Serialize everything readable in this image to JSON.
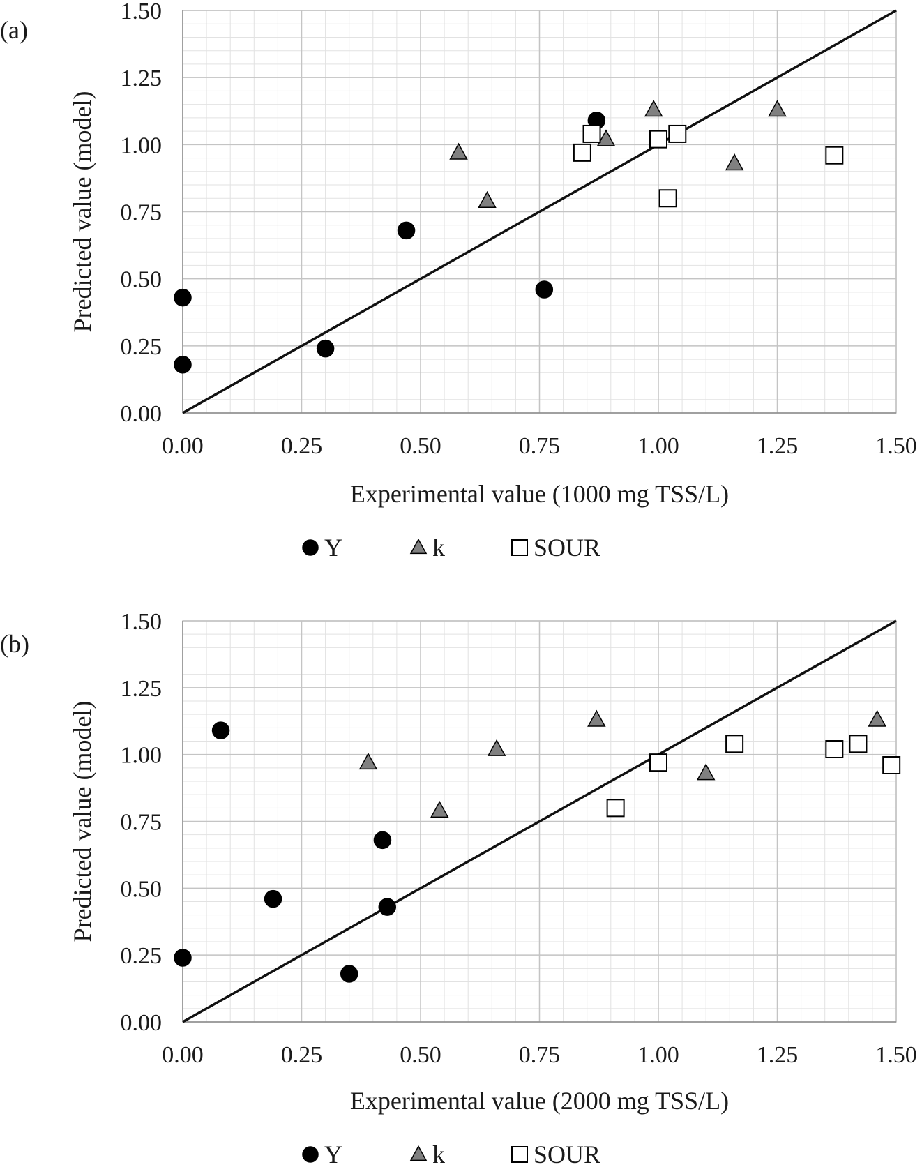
{
  "chart_data": [
    {
      "type": "scatter",
      "panel_label": "(a)",
      "xlabel": "Experimental value (1000 mg TSS/L)",
      "ylabel": "Predicted value (model)",
      "xlim": [
        0,
        1.5
      ],
      "ylim": [
        0,
        1.5
      ],
      "x_ticks": [
        "0.00",
        "0.25",
        "0.50",
        "0.75",
        "1.00",
        "1.25",
        "1.50"
      ],
      "y_ticks": [
        "0.00",
        "0.25",
        "0.50",
        "0.75",
        "1.00",
        "1.25",
        "1.50"
      ],
      "grid": true,
      "reference_line": {
        "from": [
          0,
          0
        ],
        "to": [
          1.5,
          1.5
        ]
      },
      "legend_position": "bottom",
      "series": [
        {
          "name": "Y",
          "marker": "circle",
          "color": "#000000",
          "points": [
            [
              0.0,
              0.43
            ],
            [
              0.0,
              0.18
            ],
            [
              0.3,
              0.24
            ],
            [
              0.47,
              0.68
            ],
            [
              0.76,
              0.46
            ],
            [
              0.87,
              1.09
            ]
          ]
        },
        {
          "name": "k",
          "marker": "triangle",
          "color": "#808080",
          "points": [
            [
              0.58,
              0.97
            ],
            [
              0.64,
              0.79
            ],
            [
              0.89,
              1.02
            ],
            [
              0.99,
              1.13
            ],
            [
              1.16,
              0.93
            ],
            [
              1.25,
              1.13
            ]
          ]
        },
        {
          "name": "SOUR",
          "marker": "square",
          "color": "#ffffff",
          "points": [
            [
              0.84,
              0.97
            ],
            [
              0.86,
              1.04
            ],
            [
              1.0,
              1.02
            ],
            [
              1.02,
              0.8
            ],
            [
              1.04,
              1.04
            ],
            [
              1.37,
              0.96
            ]
          ]
        }
      ]
    },
    {
      "type": "scatter",
      "panel_label": "(b)",
      "xlabel": "Experimental value (2000 mg TSS/L)",
      "ylabel": "Predicted value (model)",
      "xlim": [
        0,
        1.5
      ],
      "ylim": [
        0,
        1.5
      ],
      "x_ticks": [
        "0.00",
        "0.25",
        "0.50",
        "0.75",
        "1.00",
        "1.25",
        "1.50"
      ],
      "y_ticks": [
        "0.00",
        "0.25",
        "0.50",
        "0.75",
        "1.00",
        "1.25",
        "1.50"
      ],
      "grid": true,
      "reference_line": {
        "from": [
          0,
          0
        ],
        "to": [
          1.5,
          1.5
        ]
      },
      "legend_position": "bottom",
      "series": [
        {
          "name": "Y",
          "marker": "circle",
          "color": "#000000",
          "points": [
            [
              0.0,
              0.24
            ],
            [
              0.08,
              1.09
            ],
            [
              0.19,
              0.46
            ],
            [
              0.35,
              0.18
            ],
            [
              0.42,
              0.68
            ],
            [
              0.43,
              0.43
            ]
          ]
        },
        {
          "name": "k",
          "marker": "triangle",
          "color": "#808080",
          "points": [
            [
              0.39,
              0.97
            ],
            [
              0.54,
              0.79
            ],
            [
              0.66,
              1.02
            ],
            [
              0.87,
              1.13
            ],
            [
              1.1,
              0.93
            ],
            [
              1.46,
              1.13
            ]
          ]
        },
        {
          "name": "SOUR",
          "marker": "square",
          "color": "#ffffff",
          "points": [
            [
              0.91,
              0.8
            ],
            [
              1.0,
              0.97
            ],
            [
              1.16,
              1.04
            ],
            [
              1.37,
              1.02
            ],
            [
              1.42,
              1.04
            ],
            [
              1.49,
              0.96
            ]
          ]
        }
      ]
    }
  ]
}
